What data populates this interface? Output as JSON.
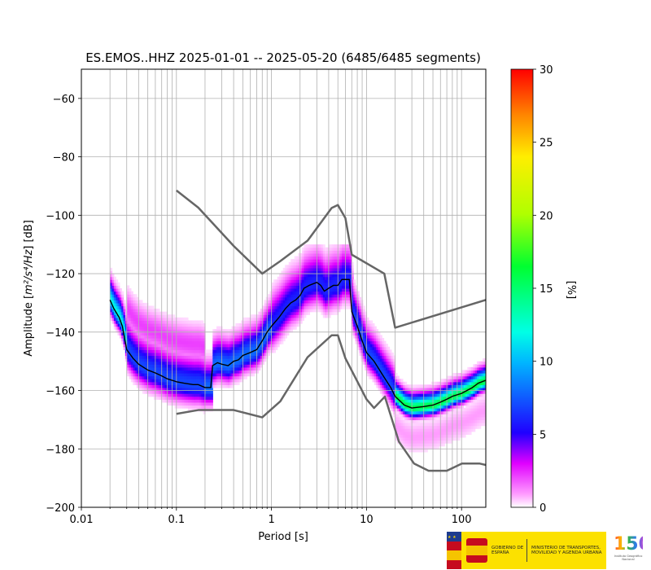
{
  "chart_data": {
    "type": "heatmap",
    "title": "ES.EMOS..HHZ   2025-01-01 -- 2025-05-20  (6485/6485 segments)",
    "xlabel": "Period [s]",
    "ylabel_prefix": "Amplitude [",
    "ylabel_unit": "m²/s⁴/Hz",
    "ylabel_suffix": "] [dB]",
    "x_scale": "log",
    "xlim": [
      0.01,
      180
    ],
    "ylim": [
      -200,
      -50
    ],
    "x_ticks": [
      {
        "v": 0.01,
        "label": "0.01"
      },
      {
        "v": 0.1,
        "label": "0.1"
      },
      {
        "v": 1,
        "label": "1"
      },
      {
        "v": 10,
        "label": "10"
      },
      {
        "v": 100,
        "label": "100"
      }
    ],
    "y_ticks": [
      {
        "v": -60,
        "label": "−60"
      },
      {
        "v": -80,
        "label": "−80"
      },
      {
        "v": -100,
        "label": "−100"
      },
      {
        "v": -120,
        "label": "−120"
      },
      {
        "v": -140,
        "label": "−140"
      },
      {
        "v": -160,
        "label": "−160"
      },
      {
        "v": -180,
        "label": "−180"
      },
      {
        "v": -200,
        "label": "−200"
      }
    ],
    "grid": true,
    "colorbar": {
      "label": "[%]",
      "range": [
        0,
        30
      ],
      "ticks": [
        {
          "v": 0,
          "label": "0"
        },
        {
          "v": 5,
          "label": "5"
        },
        {
          "v": 10,
          "label": "10"
        },
        {
          "v": 15,
          "label": "15"
        },
        {
          "v": 20,
          "label": "20"
        },
        {
          "v": 25,
          "label": "25"
        },
        {
          "v": 30,
          "label": "30"
        }
      ],
      "colormap": "pqlx"
    },
    "series": [
      {
        "role": "mode",
        "color": "#000000",
        "points": [
          [
            0.02,
            -129
          ],
          [
            0.022,
            -132
          ],
          [
            0.025,
            -135
          ],
          [
            0.027,
            -138
          ],
          [
            0.03,
            -146
          ],
          [
            0.035,
            -149
          ],
          [
            0.04,
            -151
          ],
          [
            0.05,
            -153
          ],
          [
            0.06,
            -154
          ],
          [
            0.07,
            -155
          ],
          [
            0.08,
            -156
          ],
          [
            0.1,
            -157
          ],
          [
            0.12,
            -157.5
          ],
          [
            0.15,
            -158
          ],
          [
            0.17,
            -158
          ],
          [
            0.2,
            -159
          ],
          [
            0.23,
            -159
          ],
          [
            0.24,
            -151.5
          ],
          [
            0.27,
            -150.5
          ],
          [
            0.3,
            -151
          ],
          [
            0.35,
            -151.5
          ],
          [
            0.4,
            -150
          ],
          [
            0.45,
            -149.5
          ],
          [
            0.5,
            -148
          ],
          [
            0.6,
            -147
          ],
          [
            0.7,
            -146
          ],
          [
            0.8,
            -143
          ],
          [
            0.9,
            -140
          ],
          [
            1.0,
            -138
          ],
          [
            1.2,
            -135
          ],
          [
            1.4,
            -132
          ],
          [
            1.6,
            -130
          ],
          [
            1.8,
            -129
          ],
          [
            2.0,
            -127.5
          ],
          [
            2.2,
            -125
          ],
          [
            2.5,
            -124
          ],
          [
            3.0,
            -123
          ],
          [
            3.3,
            -124
          ],
          [
            3.6,
            -126
          ],
          [
            4.0,
            -125
          ],
          [
            4.5,
            -124
          ],
          [
            5.0,
            -124
          ],
          [
            5.5,
            -122
          ],
          [
            6.0,
            -122
          ],
          [
            6.6,
            -122
          ],
          [
            7.0,
            -133
          ],
          [
            8.0,
            -138
          ],
          [
            9.0,
            -143
          ],
          [
            10,
            -147
          ],
          [
            12,
            -150
          ],
          [
            15,
            -155
          ],
          [
            18,
            -159
          ],
          [
            20,
            -162
          ],
          [
            25,
            -165
          ],
          [
            30,
            -166
          ],
          [
            40,
            -165.5
          ],
          [
            50,
            -165
          ],
          [
            60,
            -164
          ],
          [
            70,
            -163
          ],
          [
            80,
            -162
          ],
          [
            100,
            -161
          ],
          [
            130,
            -159
          ],
          [
            150,
            -157.5
          ],
          [
            180,
            -156.5
          ]
        ]
      },
      {
        "role": "noise-model-high",
        "color": "#666666",
        "points": [
          [
            0.1,
            -91.5
          ],
          [
            0.17,
            -97.4
          ],
          [
            0.4,
            -110.5
          ],
          [
            0.8,
            -120
          ],
          [
            1.24,
            -115.7
          ],
          [
            2.4,
            -108.7
          ],
          [
            4.3,
            -97.5
          ],
          [
            5.0,
            -96.5
          ],
          [
            6.0,
            -101
          ],
          [
            7.0,
            -113.5
          ],
          [
            15.4,
            -120
          ],
          [
            20,
            -138.5
          ],
          [
            180,
            -129
          ]
        ]
      },
      {
        "role": "noise-model-low",
        "color": "#666666",
        "points": [
          [
            0.1,
            -168
          ],
          [
            0.17,
            -166.7
          ],
          [
            0.4,
            -166.7
          ],
          [
            0.8,
            -169.2
          ],
          [
            1.24,
            -163.7
          ],
          [
            2.4,
            -148.6
          ],
          [
            4.3,
            -141.1
          ],
          [
            5.0,
            -141.1
          ],
          [
            6.0,
            -149
          ],
          [
            10,
            -163
          ],
          [
            12,
            -166
          ],
          [
            15.6,
            -162.1
          ],
          [
            21.9,
            -177.5
          ],
          [
            31.6,
            -185
          ],
          [
            45,
            -187.5
          ],
          [
            70,
            -187.5
          ],
          [
            101,
            -185
          ],
          [
            154,
            -185
          ],
          [
            180,
            -185.5
          ]
        ]
      }
    ],
    "distribution_note": "probability density of PSD values per period bin shown as colored heatmap"
  },
  "footer": {
    "gov_text": "GOBIERNO DE ESPAÑA",
    "ministry_text": "MINISTERIO DE TRANSPORTES, MOVILIDAD Y AGENDA URBANA",
    "ign_number": "150",
    "ign_text": "Instituto Geográfico Nacional"
  }
}
